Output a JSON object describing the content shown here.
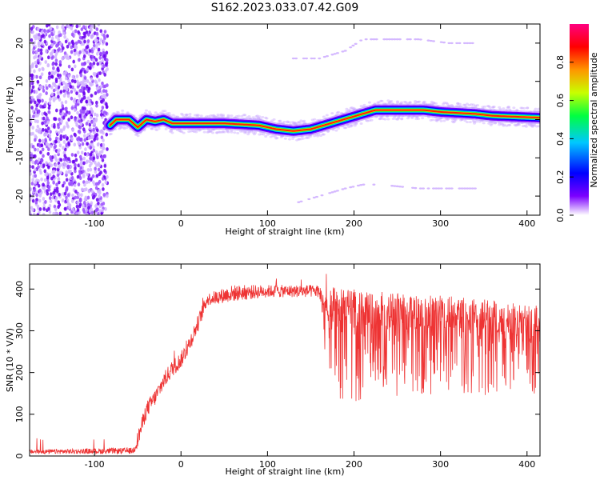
{
  "figure_title": "S162.2023.033.07.42.G09",
  "chart_data": [
    {
      "type": "heatmap",
      "xlabel": "Height of straight line (km)",
      "ylabel": "Frequency (Hz)",
      "xlim": [
        -175,
        415
      ],
      "ylim": [
        -25,
        25
      ],
      "x_ticks": [
        -100,
        0,
        100,
        200,
        300,
        400
      ],
      "y_ticks": [
        -20,
        -10,
        0,
        10,
        20
      ],
      "colorbar": {
        "label": "Normalized spectral amplitude",
        "range": [
          0,
          1
        ],
        "ticks": [
          "0.0",
          "0.2",
          "0.4",
          "0.6",
          "0.8"
        ],
        "colors": [
          "#ffffff",
          "#7b00ff",
          "#0000ff",
          "#00c8ff",
          "#00ff40",
          "#c8ff00",
          "#ff9600",
          "#ff0000",
          "#ff0080"
        ]
      },
      "noise_region_x": [
        -175,
        -85
      ],
      "ridge": {
        "x": [
          -82,
          -75,
          -60,
          -50,
          -40,
          -30,
          -20,
          -10,
          0,
          50,
          90,
          110,
          130,
          150,
          165,
          180,
          195,
          210,
          225,
          280,
          300,
          340,
          360,
          415
        ],
        "y": [
          -1.5,
          0,
          0,
          -2,
          0,
          -0.5,
          0,
          -1,
          -1,
          -1,
          -1.5,
          -2.5,
          -3,
          -2.5,
          -1.5,
          -0.5,
          0.5,
          1.5,
          2.5,
          2.5,
          2,
          1.5,
          1,
          0.5
        ]
      },
      "faint_upper": {
        "x": [
          130,
          160,
          190,
          210,
          230,
          275,
          310,
          340
        ],
        "y": [
          16,
          16,
          18,
          21,
          21,
          21,
          20,
          20
        ]
      },
      "faint_lower": {
        "x": [
          130,
          160,
          190,
          210,
          230,
          275,
          310,
          340
        ],
        "y": [
          -22,
          -20,
          -18,
          -17,
          -17,
          -18,
          -18,
          -18
        ]
      }
    },
    {
      "type": "line",
      "xlabel": "Height of straight line (km)",
      "ylabel": "SNR (10 * V/V)",
      "xlim": [
        -175,
        415
      ],
      "ylim": [
        0,
        460
      ],
      "x_ticks": [
        -100,
        0,
        100,
        200,
        300,
        400
      ],
      "y_ticks": [
        0,
        100,
        200,
        300,
        400
      ],
      "series": [
        {
          "color": "#ee3333",
          "upper_envelope": {
            "x": [
              -175,
              -55,
              -50,
              -40,
              -30,
              -20,
              -10,
              0,
              10,
              20,
              30,
              60,
              100,
              160,
              165,
              200,
              250,
              300,
              350,
              415
            ],
            "y": [
              15,
              20,
              60,
              130,
              160,
              200,
              230,
              250,
              290,
              340,
              390,
              410,
              410,
              410,
              410,
              400,
              390,
              385,
              375,
              360
            ]
          },
          "lower_envelope": {
            "x": [
              -175,
              -55,
              -50,
              -40,
              -30,
              -20,
              -10,
              0,
              10,
              20,
              30,
              60,
              100,
              160,
              165,
              170,
              200,
              250,
              300,
              350,
              415
            ],
            "y": [
              5,
              5,
              20,
              90,
              120,
              160,
              190,
              210,
              250,
              300,
              360,
              370,
              380,
              380,
              300,
              110,
              130,
              140,
              150,
              145,
              140
            ]
          }
        }
      ]
    }
  ]
}
